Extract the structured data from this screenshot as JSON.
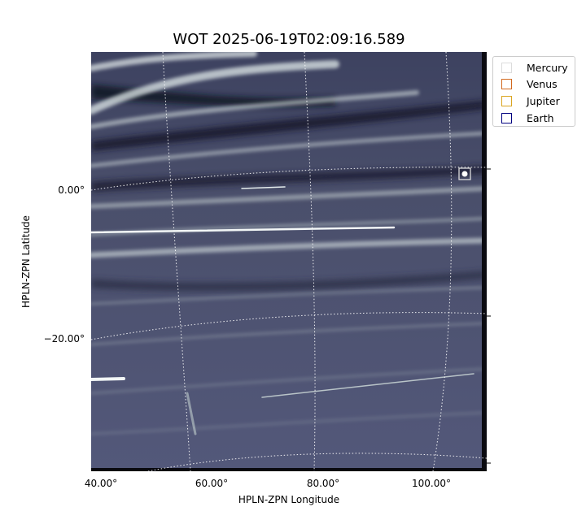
{
  "title": "WOT 2025-06-19T02:09:16.589",
  "xlabel": "HPLN-ZPN Longitude",
  "ylabel": "HPLN-ZPN Latitude",
  "x_ticks": [
    "40.00°",
    "60.00°",
    "80.00°",
    "100.00°"
  ],
  "y_ticks": [
    "0.00°",
    "−20.00°"
  ],
  "legend": [
    {
      "label": "Mercury",
      "color": "#dcdcdc"
    },
    {
      "label": "Venus",
      "color": "#d2691e"
    },
    {
      "label": "Jupiter",
      "color": "#daa520"
    },
    {
      "label": "Earth",
      "color": "#000080"
    }
  ],
  "colors": {
    "sky_base": "#4a4f6b",
    "streamer": "#dfe8e8",
    "grid": "#ffffff"
  }
}
